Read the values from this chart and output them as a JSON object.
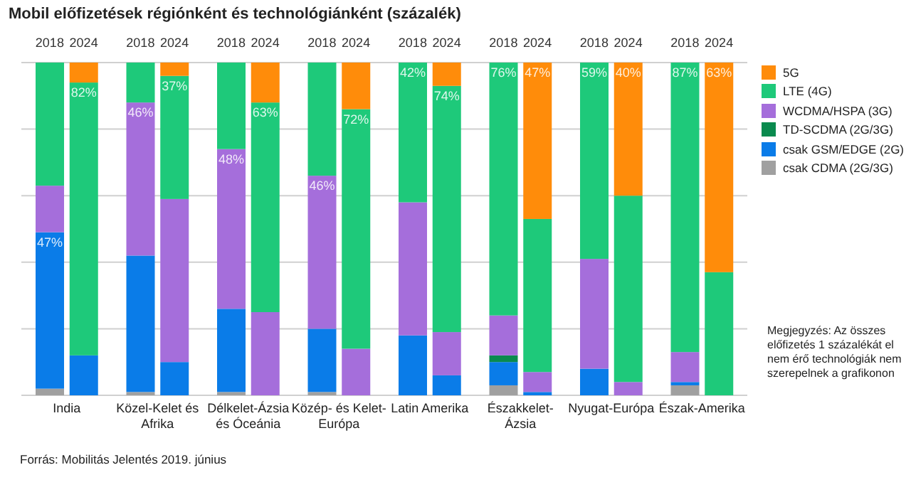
{
  "chart_data": {
    "type": "bar",
    "stacked": true,
    "title": "Mobil előfizetések régiónként és technológiánként (százalék)",
    "categories": [
      "2018",
      "2024",
      "2018",
      "2024",
      "2018",
      "2024",
      "2018",
      "2024",
      "2018",
      "2024",
      "2018",
      "2024",
      "2018",
      "2024",
      "2018",
      "2024"
    ],
    "series": [
      {
        "name": "csak CDMA (2G/3G)",
        "color": "#a0a0a0",
        "values": [
          2,
          0,
          1,
          0,
          1,
          0,
          1,
          0,
          0,
          0,
          3,
          0,
          0,
          0,
          3,
          0
        ]
      },
      {
        "name": "csak GSM/EDGE (2G)",
        "color": "#0a7ce8",
        "values": [
          47,
          12,
          41,
          10,
          25,
          0,
          19,
          0,
          18,
          6,
          7,
          1,
          8,
          0,
          1,
          0
        ],
        "value_labels": [
          "47%",
          null,
          null,
          null,
          null,
          null,
          null,
          null,
          null,
          null,
          null,
          null,
          null,
          null,
          null,
          null
        ]
      },
      {
        "name": "TD-SCDMA (2G/3G)",
        "color": "#0a8a4e",
        "values": [
          0,
          0,
          0,
          0,
          0,
          0,
          0,
          0,
          0,
          0,
          2,
          0,
          0,
          0,
          0,
          0
        ]
      },
      {
        "name": "WCDMA/HSPA (3G)",
        "color": "#a56edb",
        "values": [
          14,
          0,
          46,
          49,
          48,
          25,
          46,
          14,
          40,
          13,
          12,
          6,
          33,
          4,
          9,
          0
        ],
        "value_labels": [
          null,
          null,
          "46%",
          null,
          "48%",
          null,
          "46%",
          null,
          null,
          null,
          null,
          null,
          null,
          null,
          null,
          null
        ]
      },
      {
        "name": "LTE (4G)",
        "color": "#1ec97a",
        "values": [
          37,
          82,
          12,
          37,
          26,
          63,
          34,
          72,
          42,
          74,
          76,
          46,
          59,
          56,
          87,
          37
        ],
        "value_labels": [
          null,
          "82%",
          null,
          "37%",
          null,
          "63%",
          null,
          "72%",
          "42%",
          "74%",
          "76%",
          null,
          "59%",
          null,
          "87%",
          null
        ]
      },
      {
        "name": "5G",
        "color": "#ff8c0a",
        "values": [
          0,
          6,
          0,
          4,
          0,
          12,
          0,
          14,
          0,
          7,
          0,
          47,
          0,
          40,
          0,
          63
        ],
        "value_labels": [
          null,
          null,
          null,
          null,
          null,
          null,
          null,
          null,
          null,
          null,
          null,
          "47%",
          null,
          "40%",
          null,
          "63%"
        ]
      }
    ],
    "ylim": [
      0,
      100
    ],
    "yticks": [
      {
        "value": 0,
        "label": null
      },
      {
        "value": 20,
        "label": null
      },
      {
        "value": 40,
        "label": null
      },
      {
        "value": 60,
        "label": null
      },
      {
        "value": 80,
        "label": null
      },
      {
        "value": 100,
        "label": null
      }
    ],
    "grid": "y",
    "tick_labels": "x",
    "legend": "right",
    "annotations": [
      "India",
      "Közel-Kelet és Afrika",
      "Délkelet-Ázsia és Óceánia",
      "Közép- és Kelet-Európa",
      "Latin Amerika",
      "Északkelet-Ázsia",
      "Nyugat-Európa",
      "Észak-Amerika",
      "Megjegyzés: Az összes előfizetés 1 százalékát el nem érő technológiák nem szerepelnek a grafikonon",
      "Forrás: Mobilitás Jelentés 2019. június"
    ]
  }
}
